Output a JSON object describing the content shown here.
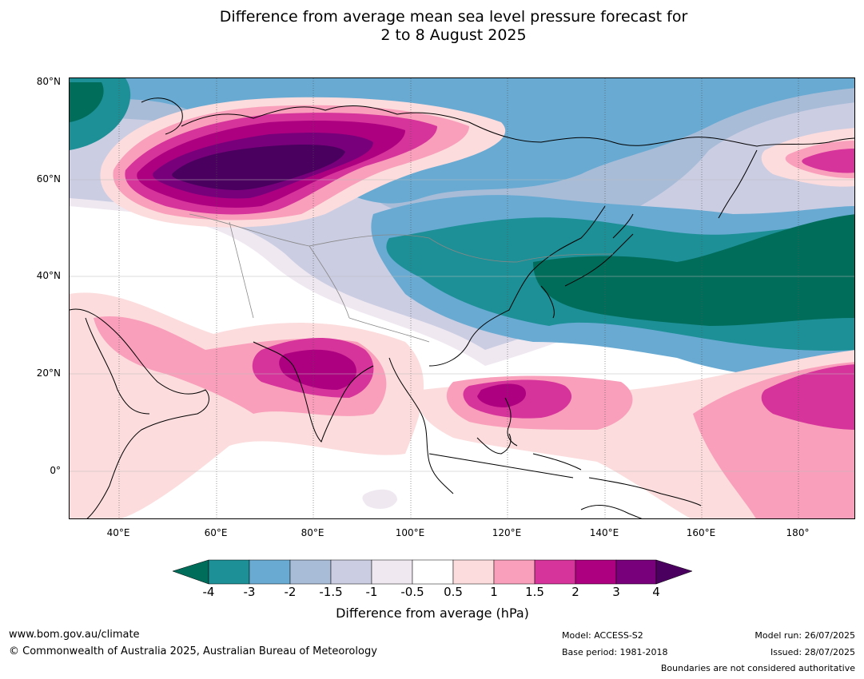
{
  "title_line1": "Difference from average mean sea level pressure forecast for",
  "title_line2": "2 to 8 August 2025",
  "map": {
    "lat_labels": [
      "80°N",
      "60°N",
      "40°N",
      "20°N",
      "0°"
    ],
    "lon_labels": [
      "40°E",
      "60°E",
      "80°E",
      "100°E",
      "120°E",
      "140°E",
      "160°E",
      "180°"
    ],
    "lat_range": [
      -10,
      80
    ],
    "lon_range": [
      30,
      192
    ],
    "colors": {
      "neg_4_plus": "#006d5b",
      "neg_3_4": "#1c9096",
      "neg_2_3": "#68aad2",
      "neg_1_5_2": "#a8bcd8",
      "neg_1_1_5": "#cbcde3",
      "neg_0_5_1": "#efe8f1",
      "neutral": "#ffffff",
      "pos_0_5_1": "#fcdcdc",
      "pos_1_1_5": "#f99fbb",
      "pos_1_5_2": "#d6339b",
      "pos_2_3": "#ad0080",
      "pos_3_4": "#79007b",
      "pos_4_plus": "#4a005f"
    }
  },
  "colorbar": {
    "ticks": [
      "-4",
      "-3",
      "-2",
      "-1.5",
      "-1",
      "-0.5",
      "0.5",
      "1",
      "1.5",
      "2",
      "3",
      "4"
    ],
    "label": "Difference from average (hPa)"
  },
  "footer": {
    "website": "www.bom.gov.au/climate",
    "copyright": "© Commonwealth of Australia 2025, Australian Bureau of Meteorology",
    "model": "Model: ACCESS-S2",
    "base_period": "Base period: 1981-2018",
    "model_run": "Model run: 26/07/2025",
    "issued": "Issued: 28/07/2025",
    "disclaimer": "Boundaries are not considered authoritative"
  }
}
